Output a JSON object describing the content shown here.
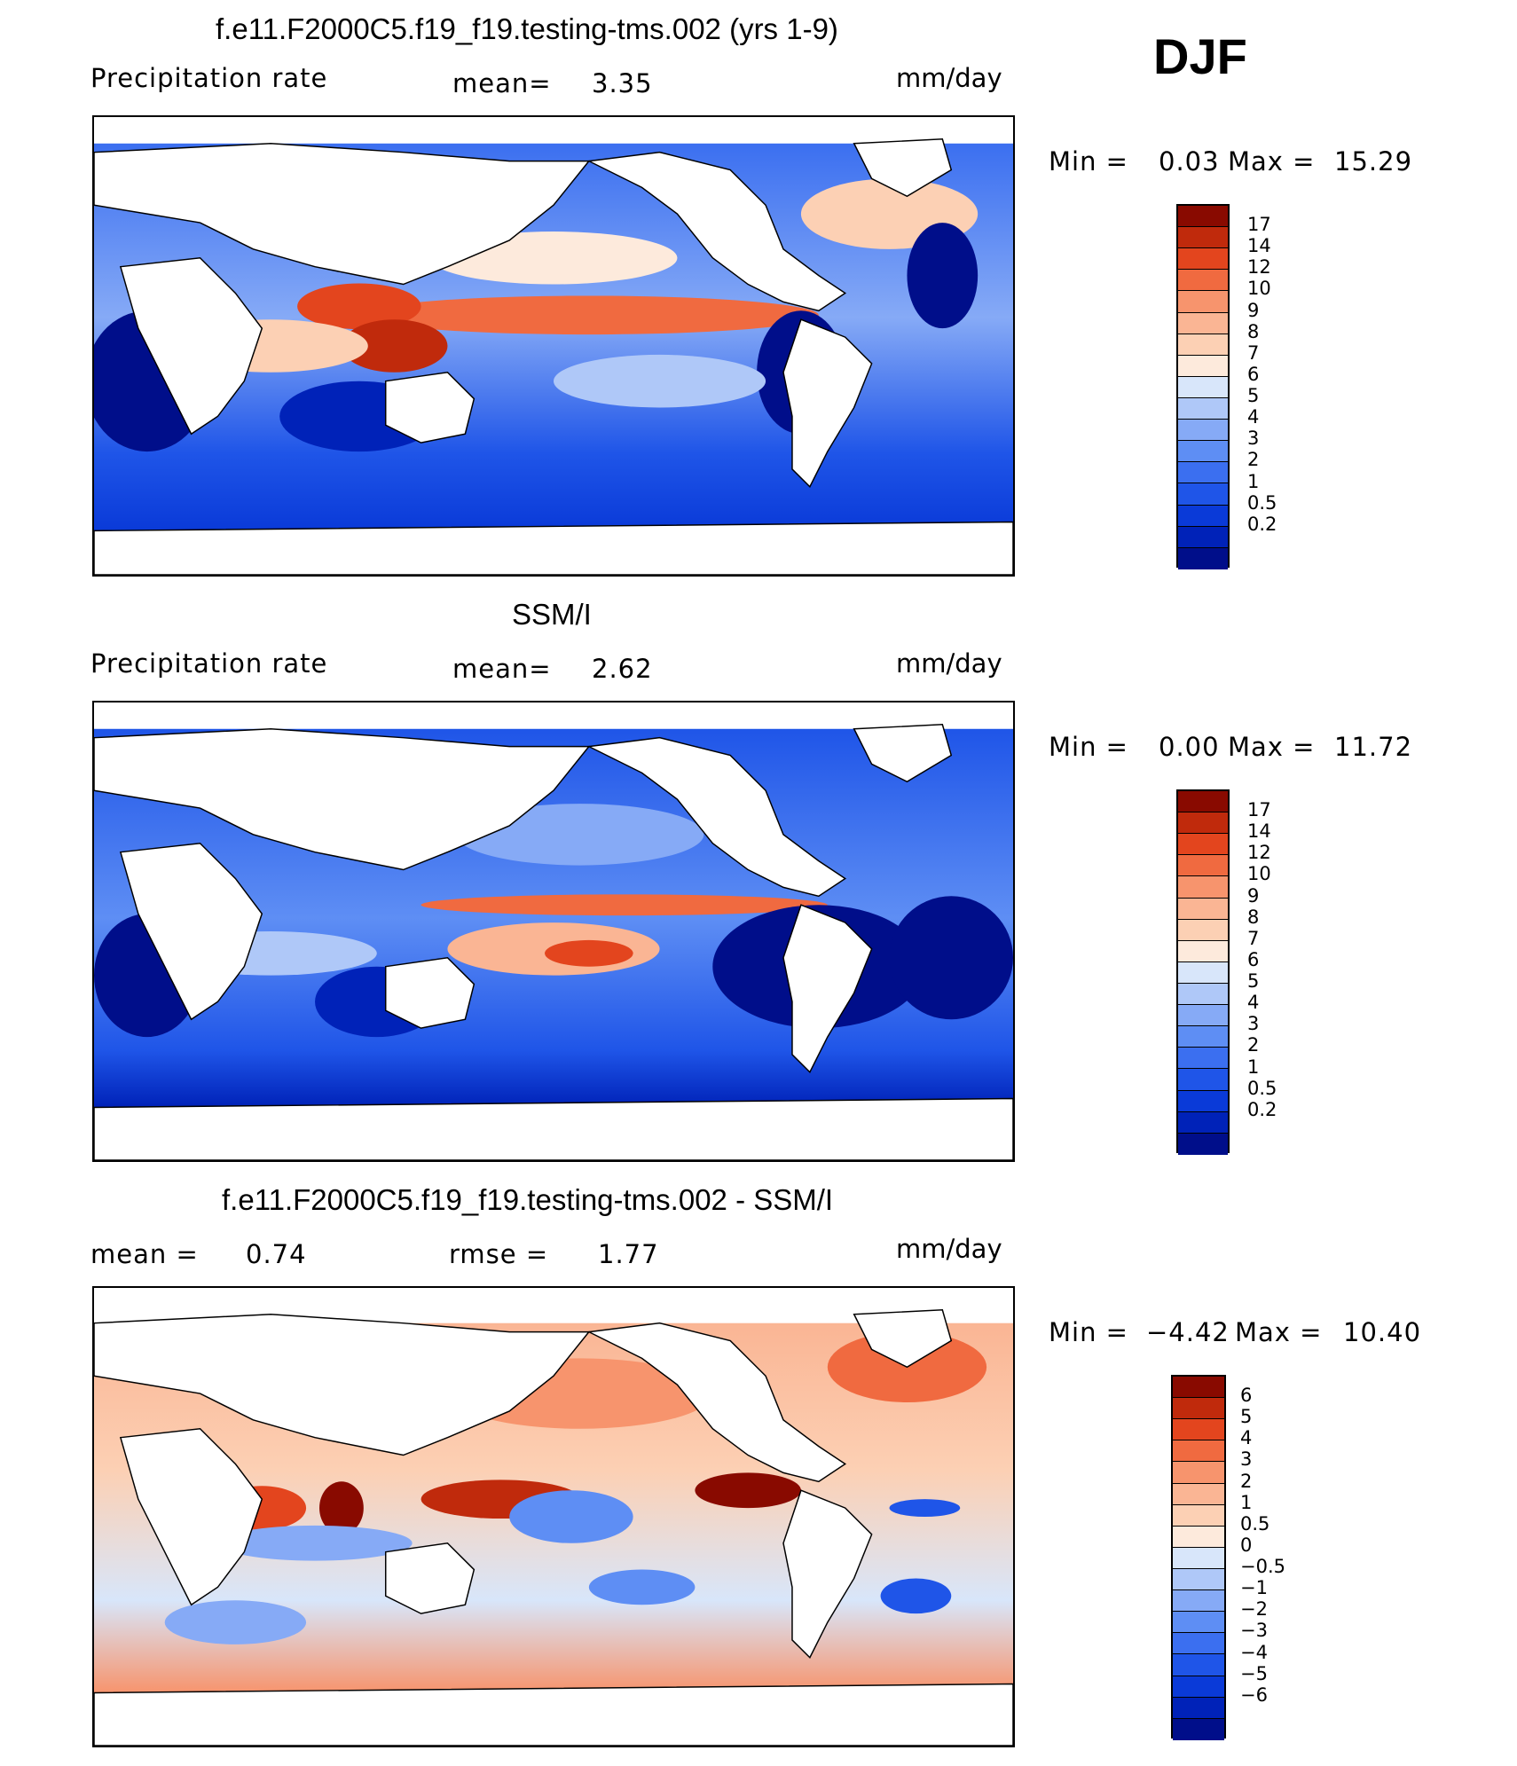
{
  "header": {
    "season": "DJF"
  },
  "colors": {
    "precip_scale": [
      "#000e8a",
      "#0022b8",
      "#0a3ad8",
      "#1f55e8",
      "#3b6ff0",
      "#5e8ef4",
      "#86aaf6",
      "#afc8f8",
      "#d8e6fa",
      "#fdeadc",
      "#fcd0b4",
      "#fab594",
      "#f7946d",
      "#f06a40",
      "#e3451e",
      "#c02a0c",
      "#890a00"
    ],
    "diff_scale": [
      "#000e8a",
      "#0022b8",
      "#0a3ad8",
      "#1f55e8",
      "#3b6ff0",
      "#5e8ef4",
      "#86aaf6",
      "#afc8f8",
      "#d8e6fa",
      "#fdeadc",
      "#fcd0b4",
      "#fab594",
      "#f7946d",
      "#f06a40",
      "#e3451e",
      "#c02a0c",
      "#890a00"
    ]
  },
  "panels": [
    {
      "title": "f.e11.F2000C5.f19_f19.testing-tms.002 (yrs 1-9)",
      "left_label": "Precipitation  rate",
      "mid_label": "mean=",
      "mid_value": "3.35",
      "units": "mm/day",
      "min_label": "Min  =",
      "min_value": "0.03",
      "max_label": "Max  =",
      "max_value": "15.29",
      "ticks": [
        "17",
        "14",
        "12",
        "10",
        "9",
        "8",
        "7",
        "6",
        "5",
        "4",
        "3",
        "2",
        "1",
        "0.5",
        "0.2"
      ]
    },
    {
      "title": "SSM/I",
      "left_label": "Precipitation  rate",
      "mid_label": "mean=",
      "mid_value": "2.62",
      "units": "mm/day",
      "min_label": "Min  =",
      "min_value": "0.00",
      "max_label": "Max  =",
      "max_value": "11.72",
      "ticks": [
        "17",
        "14",
        "12",
        "10",
        "9",
        "8",
        "7",
        "6",
        "5",
        "4",
        "3",
        "2",
        "1",
        "0.5",
        "0.2"
      ]
    },
    {
      "title": "f.e11.F2000C5.f19_f19.testing-tms.002 - SSM/I",
      "left_label": "mean  =",
      "left_value": "0.74",
      "mid_label": "rmse  =",
      "mid_value": "1.77",
      "units": "mm/day",
      "min_label": "Min  =",
      "min_value": "−4.42",
      "max_label": "Max  =",
      "max_value": "10.40",
      "ticks": [
        "6",
        "5",
        "4",
        "3",
        "2",
        "1",
        "0.5",
        "0",
        "−0.5",
        "−1",
        "−2",
        "−3",
        "−4",
        "−5",
        "−6"
      ]
    }
  ]
}
